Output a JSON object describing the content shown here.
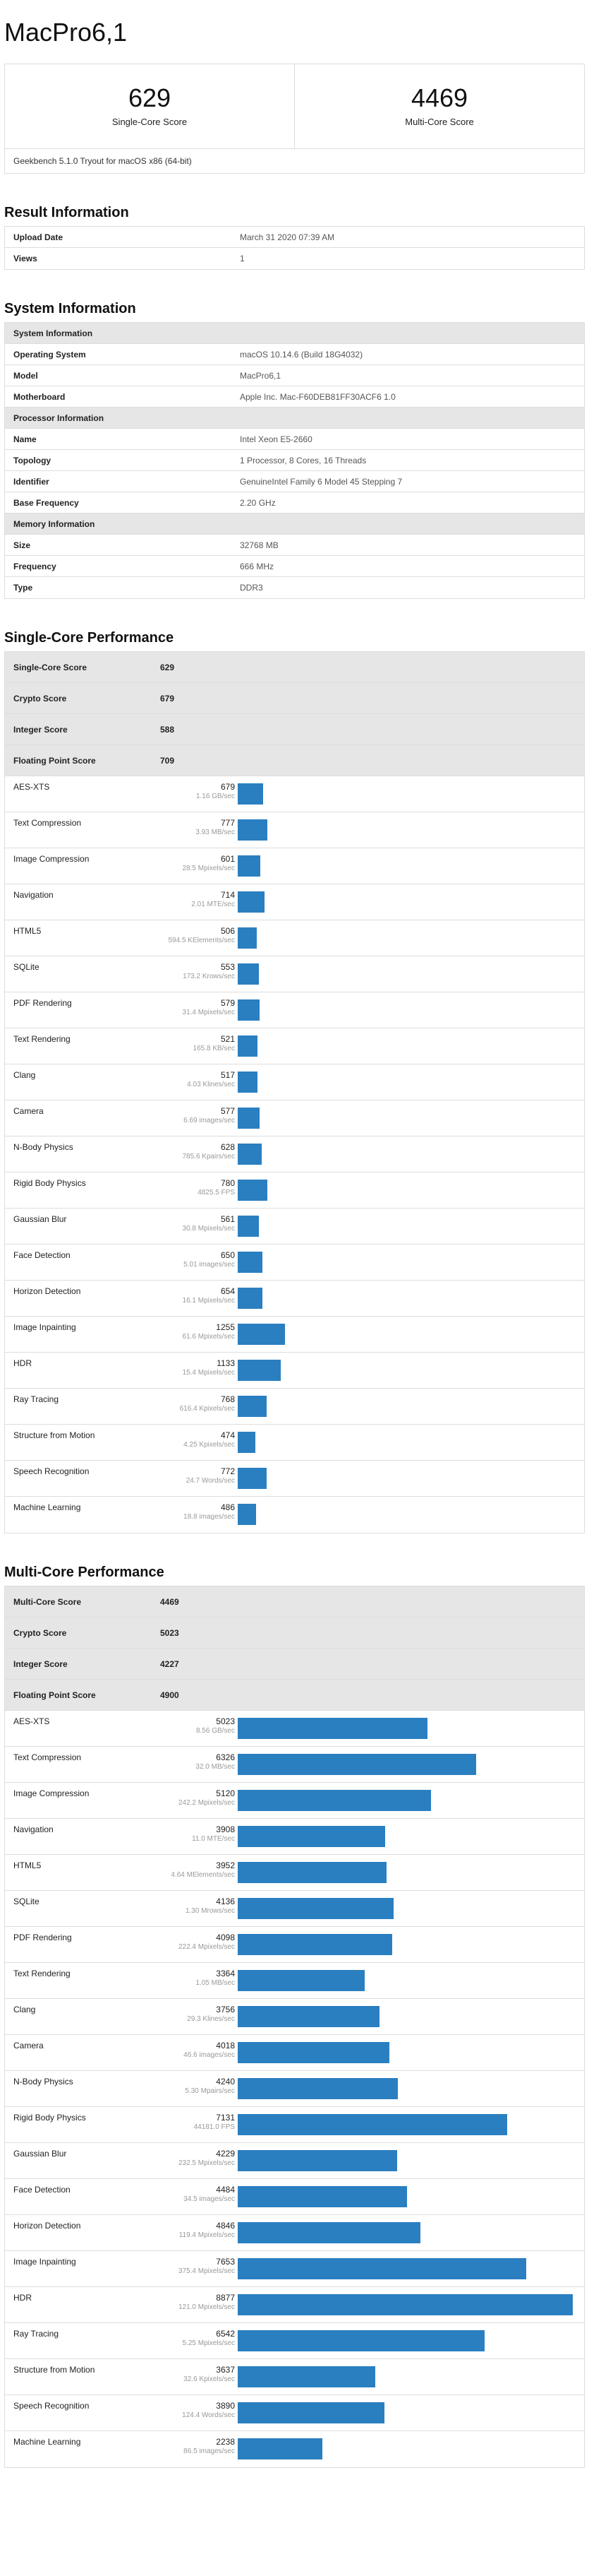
{
  "title": "MacPro6,1",
  "scores": {
    "single": {
      "value": "629",
      "label": "Single-Core Score"
    },
    "multi": {
      "value": "4469",
      "label": "Multi-Core Score"
    }
  },
  "tryout": "Geekbench 5.1.0 Tryout for macOS x86 (64-bit)",
  "result": {
    "heading": "Result Information",
    "rows": [
      {
        "k": "Upload Date",
        "v": "March 31 2020 07:39 AM"
      },
      {
        "k": "Views",
        "v": "1"
      }
    ]
  },
  "system": {
    "heading": "System Information",
    "rows": [
      {
        "k": "System Information",
        "v": "",
        "hdr": true
      },
      {
        "k": "Operating System",
        "v": "macOS 10.14.6 (Build 18G4032)"
      },
      {
        "k": "Model",
        "v": "MacPro6,1"
      },
      {
        "k": "Motherboard",
        "v": "Apple Inc. Mac-F60DEB81FF30ACF6 1.0"
      },
      {
        "k": "Processor Information",
        "v": "",
        "hdr": true
      },
      {
        "k": "Name",
        "v": "Intel Xeon E5-2660"
      },
      {
        "k": "Topology",
        "v": "1 Processor, 8 Cores, 16 Threads"
      },
      {
        "k": "Identifier",
        "v": "GenuineIntel Family 6 Model 45 Stepping 7"
      },
      {
        "k": "Base Frequency",
        "v": "2.20 GHz"
      },
      {
        "k": "Memory Information",
        "v": "",
        "hdr": true
      },
      {
        "k": "Size",
        "v": "32768 MB"
      },
      {
        "k": "Frequency",
        "v": "666 MHz"
      },
      {
        "k": "Type",
        "v": "DDR3"
      }
    ]
  },
  "single": {
    "heading": "Single-Core Performance",
    "summary": [
      {
        "k": "Single-Core Score",
        "v": "629"
      },
      {
        "k": "Crypto Score",
        "v": "679"
      },
      {
        "k": "Integer Score",
        "v": "588"
      },
      {
        "k": "Floating Point Score",
        "v": "709"
      }
    ],
    "workloads": [
      {
        "name": "AES-XTS",
        "score": 679,
        "desc": "1.16 GB/sec"
      },
      {
        "name": "Text Compression",
        "score": 777,
        "desc": "3.93 MB/sec"
      },
      {
        "name": "Image Compression",
        "score": 601,
        "desc": "28.5 Mpixels/sec"
      },
      {
        "name": "Navigation",
        "score": 714,
        "desc": "2.01 MTE/sec"
      },
      {
        "name": "HTML5",
        "score": 506,
        "desc": "594.5 KElements/sec"
      },
      {
        "name": "SQLite",
        "score": 553,
        "desc": "173.2 Krows/sec"
      },
      {
        "name": "PDF Rendering",
        "score": 579,
        "desc": "31.4 Mpixels/sec"
      },
      {
        "name": "Text Rendering",
        "score": 521,
        "desc": "165.8 KB/sec"
      },
      {
        "name": "Clang",
        "score": 517,
        "desc": "4.03 Klines/sec"
      },
      {
        "name": "Camera",
        "score": 577,
        "desc": "6.69 images/sec"
      },
      {
        "name": "N-Body Physics",
        "score": 628,
        "desc": "785.6 Kpairs/sec"
      },
      {
        "name": "Rigid Body Physics",
        "score": 780,
        "desc": "4825.5 FPS"
      },
      {
        "name": "Gaussian Blur",
        "score": 561,
        "desc": "30.8 Mpixels/sec"
      },
      {
        "name": "Face Detection",
        "score": 650,
        "desc": "5.01 images/sec"
      },
      {
        "name": "Horizon Detection",
        "score": 654,
        "desc": "16.1 Mpixels/sec"
      },
      {
        "name": "Image Inpainting",
        "score": 1255,
        "desc": "61.6 Mpixels/sec"
      },
      {
        "name": "HDR",
        "score": 1133,
        "desc": "15.4 Mpixels/sec"
      },
      {
        "name": "Ray Tracing",
        "score": 768,
        "desc": "616.4 Kpixels/sec"
      },
      {
        "name": "Structure from Motion",
        "score": 474,
        "desc": "4.25 Kpixels/sec"
      },
      {
        "name": "Speech Recognition",
        "score": 772,
        "desc": "24.7 Words/sec"
      },
      {
        "name": "Machine Learning",
        "score": 486,
        "desc": "18.8 images/sec"
      }
    ]
  },
  "multi": {
    "heading": "Multi-Core Performance",
    "summary": [
      {
        "k": "Multi-Core Score",
        "v": "4469"
      },
      {
        "k": "Crypto Score",
        "v": "5023"
      },
      {
        "k": "Integer Score",
        "v": "4227"
      },
      {
        "k": "Floating Point Score",
        "v": "4900"
      }
    ],
    "workloads": [
      {
        "name": "AES-XTS",
        "score": 5023,
        "desc": "8.56 GB/sec"
      },
      {
        "name": "Text Compression",
        "score": 6326,
        "desc": "32.0 MB/sec"
      },
      {
        "name": "Image Compression",
        "score": 5120,
        "desc": "242.2 Mpixels/sec"
      },
      {
        "name": "Navigation",
        "score": 3908,
        "desc": "11.0 MTE/sec"
      },
      {
        "name": "HTML5",
        "score": 3952,
        "desc": "4.64 MElements/sec"
      },
      {
        "name": "SQLite",
        "score": 4136,
        "desc": "1.30 Mrows/sec"
      },
      {
        "name": "PDF Rendering",
        "score": 4098,
        "desc": "222.4 Mpixels/sec"
      },
      {
        "name": "Text Rendering",
        "score": 3364,
        "desc": "1.05 MB/sec"
      },
      {
        "name": "Clang",
        "score": 3756,
        "desc": "29.3 Klines/sec"
      },
      {
        "name": "Camera",
        "score": 4018,
        "desc": "46.6 images/sec"
      },
      {
        "name": "N-Body Physics",
        "score": 4240,
        "desc": "5.30 Mpairs/sec"
      },
      {
        "name": "Rigid Body Physics",
        "score": 7131,
        "desc": "44181.0 FPS"
      },
      {
        "name": "Gaussian Blur",
        "score": 4229,
        "desc": "232.5 Mpixels/sec"
      },
      {
        "name": "Face Detection",
        "score": 4484,
        "desc": "34.5 images/sec"
      },
      {
        "name": "Horizon Detection",
        "score": 4846,
        "desc": "119.4 Mpixels/sec"
      },
      {
        "name": "Image Inpainting",
        "score": 7653,
        "desc": "375.4 Mpixels/sec"
      },
      {
        "name": "HDR",
        "score": 8877,
        "desc": "121.0 Mpixels/sec"
      },
      {
        "name": "Ray Tracing",
        "score": 6542,
        "desc": "5.25 Mpixels/sec"
      },
      {
        "name": "Structure from Motion",
        "score": 3637,
        "desc": "32.6 Kpixels/sec"
      },
      {
        "name": "Speech Recognition",
        "score": 3890,
        "desc": "124.4 Words/sec"
      },
      {
        "name": "Machine Learning",
        "score": 2238,
        "desc": "86.5 images/sec"
      }
    ]
  }
}
